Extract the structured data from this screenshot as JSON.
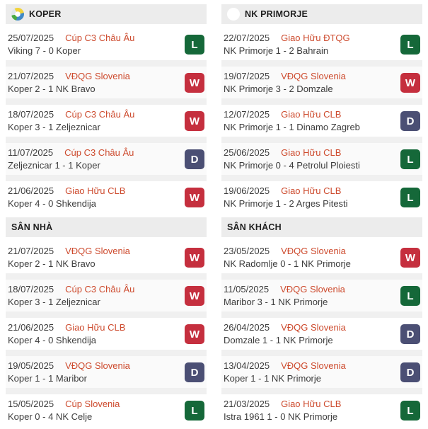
{
  "theme": {
    "header_bg": "#ececec",
    "header_text": "#1f1f1f",
    "row_alt_bg": "#fafafa",
    "separator_color": "#f0f0f0",
    "date_color": "#3c3c3c",
    "match_color": "#3c3c3c",
    "competition_color": "#cd4a2d",
    "badge_text_color": "#ffffff",
    "result_colors": {
      "W": "#c52f3e",
      "L": "#156839",
      "D": "#4b4f74"
    }
  },
  "sections": [
    {
      "title": "KOPER",
      "logo": "koper-crest",
      "column": "left",
      "matches": [
        {
          "date": "25/07/2025",
          "competition": "Cúp C3 Châu Âu",
          "result_line": "Viking 7 - 0 Koper",
          "outcome": "L"
        },
        {
          "date": "21/07/2025",
          "competition": "VĐQG Slovenia",
          "result_line": "Koper 2 - 1 NK Bravo",
          "outcome": "W"
        },
        {
          "date": "18/07/2025",
          "competition": "Cúp C3 Châu Âu",
          "result_line": "Koper 3 - 1 Zeljeznicar",
          "outcome": "W"
        },
        {
          "date": "11/07/2025",
          "competition": "Cúp C3 Châu Âu",
          "result_line": "Zeljeznicar 1 - 1 Koper",
          "outcome": "D"
        },
        {
          "date": "21/06/2025",
          "competition": "Giao Hữu CLB",
          "result_line": "Koper 4 - 0 Shkendija",
          "outcome": "W"
        }
      ]
    },
    {
      "title": "NK PRIMORJE",
      "logo": "primorje-crest",
      "column": "right",
      "matches": [
        {
          "date": "22/07/2025",
          "competition": "Giao Hữu ĐTQG",
          "result_line": "NK Primorje 1 - 2 Bahrain",
          "outcome": "L"
        },
        {
          "date": "19/07/2025",
          "competition": "VĐQG Slovenia",
          "result_line": "NK Primorje 3 - 2 Domzale",
          "outcome": "W"
        },
        {
          "date": "12/07/2025",
          "competition": "Giao Hữu CLB",
          "result_line": "NK Primorje 1 - 1 Dinamo Zagreb",
          "outcome": "D"
        },
        {
          "date": "25/06/2025",
          "competition": "Giao Hữu CLB",
          "result_line": "NK Primorje 0 - 4 Petrolul Ploiesti",
          "outcome": "L"
        },
        {
          "date": "19/06/2025",
          "competition": "Giao Hữu CLB",
          "result_line": "NK Primorje 1 - 2 Arges Pitesti",
          "outcome": "L"
        }
      ]
    },
    {
      "title": "SÂN NHÀ",
      "logo": "none",
      "column": "left",
      "matches": [
        {
          "date": "21/07/2025",
          "competition": "VĐQG Slovenia",
          "result_line": "Koper 2 - 1 NK Bravo",
          "outcome": "W"
        },
        {
          "date": "18/07/2025",
          "competition": "Cúp C3 Châu Âu",
          "result_line": "Koper 3 - 1 Zeljeznicar",
          "outcome": "W"
        },
        {
          "date": "21/06/2025",
          "competition": "Giao Hữu CLB",
          "result_line": "Koper 4 - 0 Shkendija",
          "outcome": "W"
        },
        {
          "date": "19/05/2025",
          "competition": "VĐQG Slovenia",
          "result_line": "Koper 1 - 1 Maribor",
          "outcome": "D"
        },
        {
          "date": "15/05/2025",
          "competition": "Cúp Slovenia",
          "result_line": "Koper 0 - 4 NK Celje",
          "outcome": "L"
        }
      ]
    },
    {
      "title": "SÂN KHÁCH",
      "logo": "none",
      "column": "right",
      "matches": [
        {
          "date": "23/05/2025",
          "competition": "VĐQG Slovenia",
          "result_line": "NK Radomlje 0 - 1 NK Primorje",
          "outcome": "W"
        },
        {
          "date": "11/05/2025",
          "competition": "VĐQG Slovenia",
          "result_line": "Maribor 3 - 1 NK Primorje",
          "outcome": "L"
        },
        {
          "date": "26/04/2025",
          "competition": "VĐQG Slovenia",
          "result_line": "Domzale 1 - 1 NK Primorje",
          "outcome": "D"
        },
        {
          "date": "13/04/2025",
          "competition": "VĐQG Slovenia",
          "result_line": "Koper 1 - 1 NK Primorje",
          "outcome": "D"
        },
        {
          "date": "21/03/2025",
          "competition": "Giao Hữu CLB",
          "result_line": "Istra 1961 1 - 0 NK Primorje",
          "outcome": "L"
        }
      ]
    }
  ]
}
